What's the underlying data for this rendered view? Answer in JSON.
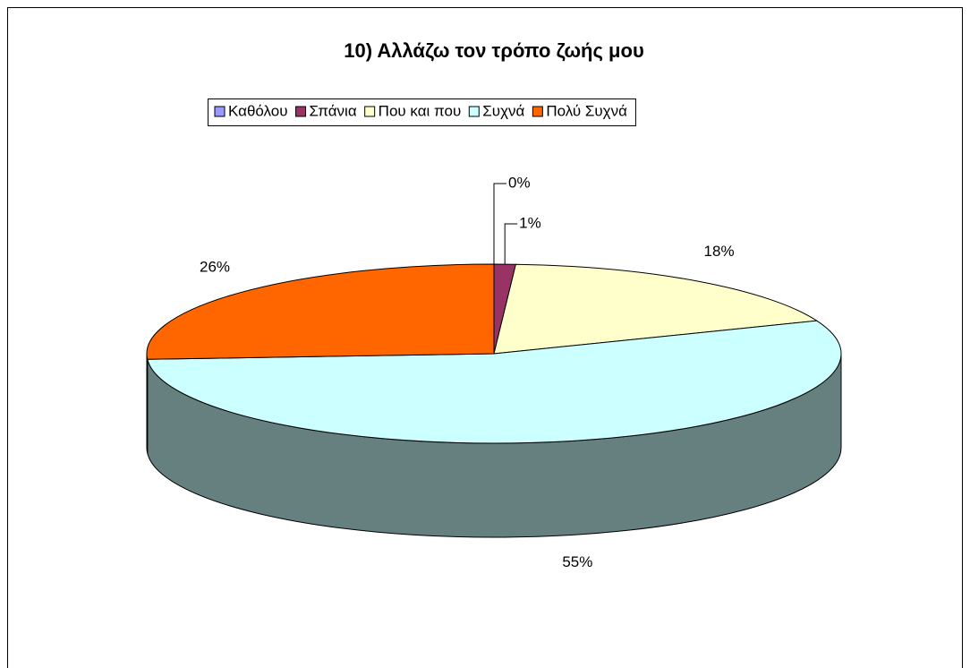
{
  "chart_data": {
    "type": "pie",
    "title": "10)  Αλλάζω τον τρόπο ζωής μου",
    "categories": [
      "Καθόλου",
      "Σπάνια",
      "Που και που",
      "Συχνά",
      "Πολύ Συχνά"
    ],
    "values": [
      0,
      1,
      18,
      55,
      26
    ],
    "value_labels": [
      "0%",
      "1%",
      "18%",
      "55%",
      "26%"
    ],
    "colors": [
      "#9999ff",
      "#993366",
      "#ffffcc",
      "#ccffff",
      "#ff6600"
    ],
    "legend": "top"
  }
}
